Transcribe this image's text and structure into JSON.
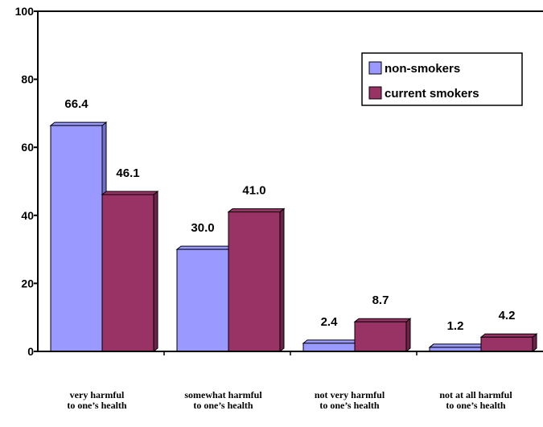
{
  "chart_data": {
    "type": "bar",
    "title": "",
    "xlabel": "",
    "ylabel": "",
    "ylim": [
      0,
      100
    ],
    "yticks": [
      0,
      20,
      40,
      60,
      80,
      100
    ],
    "grid": false,
    "legend_position": "top-right",
    "categories": [
      [
        "very harmful",
        "to one’s health"
      ],
      [
        "somewhat harmful",
        "to one’s health"
      ],
      [
        "not very harmful",
        "to one’s health"
      ],
      [
        "not at all harmful",
        "to one’s health"
      ]
    ],
    "series": [
      {
        "name": "non-smokers",
        "color": "#9999ff",
        "side_color": "#6f6fcc",
        "values": [
          66.4,
          30.0,
          2.4,
          1.2
        ],
        "labels": [
          "66.4",
          "30.0",
          "2.4",
          "1.2"
        ]
      },
      {
        "name": "current smokers",
        "color": "#993366",
        "side_color": "#6e2249",
        "values": [
          46.1,
          41.0,
          8.7,
          4.2
        ],
        "labels": [
          "46.1",
          "41.0",
          "8.7",
          "4.2"
        ]
      }
    ]
  }
}
